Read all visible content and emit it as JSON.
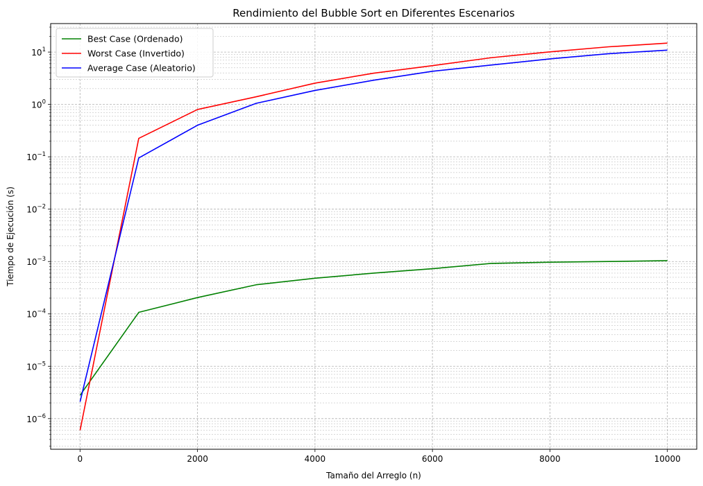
{
  "chart_data": {
    "type": "line",
    "title": "Rendimiento del Bubble Sort en Diferentes Escenarios",
    "xlabel": "Tamaño del Arreglo (n)",
    "ylabel": "Tiempo de Ejecución (s)",
    "yscale": "log",
    "xlim": [
      -500,
      10500
    ],
    "ylim": [
      2.6e-07,
      35
    ],
    "grid": true,
    "grid_style": "dashed, major and minor",
    "legend_position": "top-left",
    "x_ticks": [
      0,
      2000,
      4000,
      6000,
      8000,
      10000
    ],
    "x_tick_labels": [
      "0",
      "2000",
      "4000",
      "6000",
      "8000",
      "10000"
    ],
    "y_ticks": [
      1e-06,
      1e-05,
      0.0001,
      0.001,
      0.01,
      0.1,
      1,
      10
    ],
    "y_tick_labels": [
      {
        "base": "10",
        "exp": "−6"
      },
      {
        "base": "10",
        "exp": "−5"
      },
      {
        "base": "10",
        "exp": "−4"
      },
      {
        "base": "10",
        "exp": "−3"
      },
      {
        "base": "10",
        "exp": "−2"
      },
      {
        "base": "10",
        "exp": "−1"
      },
      {
        "base": "10",
        "exp": "0"
      },
      {
        "base": "10",
        "exp": "1"
      }
    ],
    "x": [
      1,
      1000,
      2000,
      3000,
      4000,
      5000,
      6000,
      7000,
      8000,
      9000,
      10000
    ],
    "series": [
      {
        "name": "Best Case (Ordenado)",
        "color": "#008000",
        "values": [
          2.8e-06,
          0.000107,
          0.000205,
          0.00036,
          0.00048,
          0.0006,
          0.00073,
          0.00092,
          0.00097,
          0.001,
          0.00104
        ]
      },
      {
        "name": "Worst Case (Invertido)",
        "color": "#ff0000",
        "values": [
          6e-07,
          0.225,
          0.8,
          1.4,
          2.55,
          3.95,
          5.5,
          7.8,
          10.1,
          12.6,
          14.8
        ]
      },
      {
        "name": "Average Case (Aleatorio)",
        "color": "#0000ff",
        "values": [
          2.1e-06,
          0.095,
          0.4,
          1.05,
          1.85,
          2.9,
          4.3,
          5.65,
          7.4,
          9.3,
          10.9
        ]
      }
    ]
  }
}
